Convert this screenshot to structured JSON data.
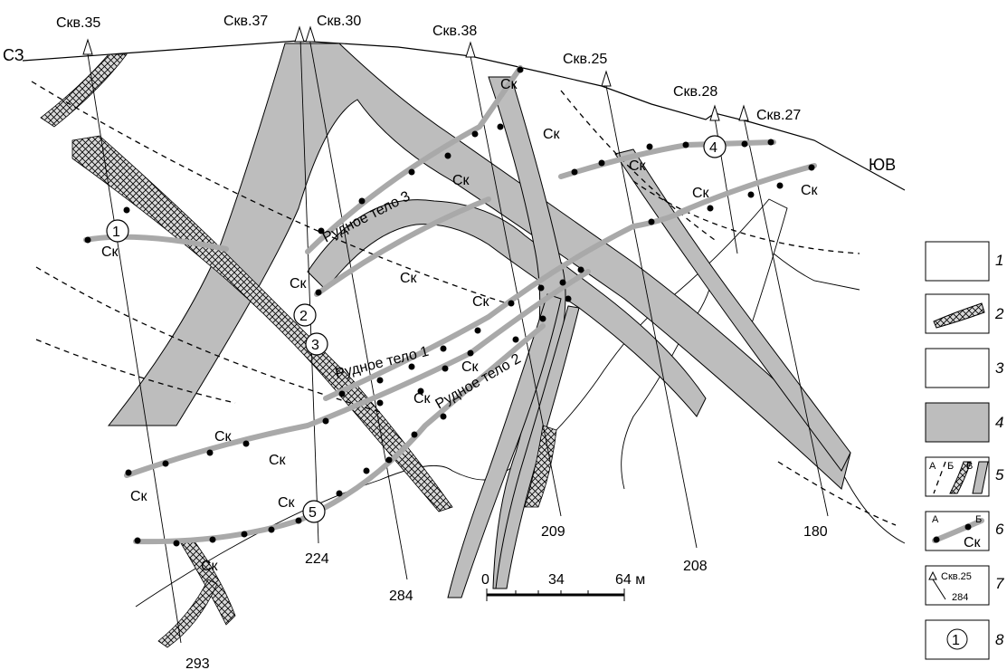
{
  "wells": [
    {
      "id": "w35",
      "label": "Скв.35"
    },
    {
      "id": "w37",
      "label": "Скв.37"
    },
    {
      "id": "w30",
      "label": "Скв.30"
    },
    {
      "id": "w38",
      "label": "Скв.38"
    },
    {
      "id": "w25",
      "label": "Скв.25"
    },
    {
      "id": "w28",
      "label": "Скв.28"
    },
    {
      "id": "w27",
      "label": "Скв.27"
    }
  ],
  "depths": [
    "293",
    "224",
    "284",
    "209",
    "208",
    "180"
  ],
  "directions": {
    "nw": "СЗ",
    "se": "ЮВ"
  },
  "ore_bodies": [
    "Рудное тело  3",
    "Рудное тело  1",
    "Рудное тело 2"
  ],
  "skarn_label": "Ск",
  "circles": [
    "1",
    "2",
    "3",
    "4",
    "5"
  ],
  "scale": {
    "zero": "0",
    "mid": "34",
    "end": "64 м"
  },
  "legend": {
    "numbers": [
      "1",
      "2",
      "3",
      "4",
      "5",
      "6",
      "7",
      "8"
    ],
    "box5_letters": [
      "А",
      "Б",
      "В"
    ],
    "box6_letters": [
      "А",
      "Б"
    ],
    "box6_label": "Ск",
    "box7_label": "Скв.25",
    "box7_depth": "284",
    "box8_circle": "1"
  }
}
